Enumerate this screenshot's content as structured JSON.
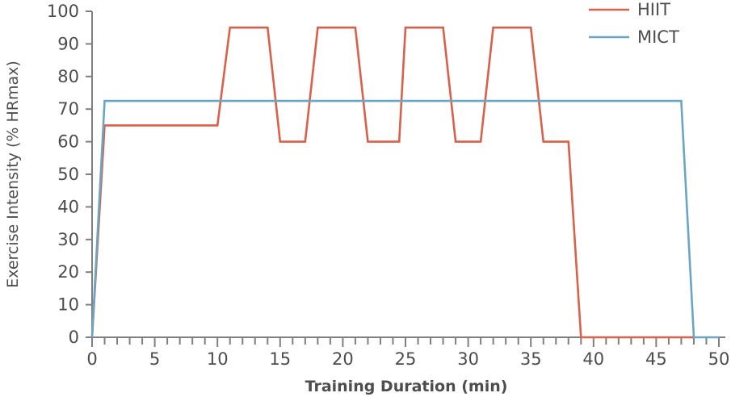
{
  "chart_data": {
    "type": "line",
    "xlabel": "Training Duration (min)",
    "ylabel": "Exercise Intensity (% HRmax)",
    "xlim": [
      0,
      50
    ],
    "ylim": [
      0,
      100
    ],
    "xticks": [
      0,
      5,
      10,
      15,
      20,
      25,
      30,
      35,
      40,
      45,
      50
    ],
    "yticks": [
      0,
      10,
      20,
      30,
      40,
      50,
      60,
      70,
      80,
      90,
      100
    ],
    "legend_position": "top-right",
    "grid": false,
    "series": [
      {
        "name": "HIIT",
        "color": "#d9604a",
        "points": [
          [
            0,
            0
          ],
          [
            1,
            65
          ],
          [
            10,
            65
          ],
          [
            11,
            95
          ],
          [
            14,
            95
          ],
          [
            15,
            60
          ],
          [
            17,
            60
          ],
          [
            18,
            95
          ],
          [
            21,
            95
          ],
          [
            22,
            60
          ],
          [
            24.5,
            60
          ],
          [
            25,
            95
          ],
          [
            28,
            95
          ],
          [
            29,
            60
          ],
          [
            31,
            60
          ],
          [
            32,
            95
          ],
          [
            35,
            95
          ],
          [
            36,
            60
          ],
          [
            38,
            60
          ],
          [
            39,
            0
          ],
          [
            48,
            0
          ]
        ]
      },
      {
        "name": "MICT",
        "color": "#6aa6c4",
        "points": [
          [
            0,
            0
          ],
          [
            1,
            72.5
          ],
          [
            47,
            72.5
          ],
          [
            48,
            0
          ],
          [
            50,
            0
          ]
        ]
      }
    ]
  }
}
